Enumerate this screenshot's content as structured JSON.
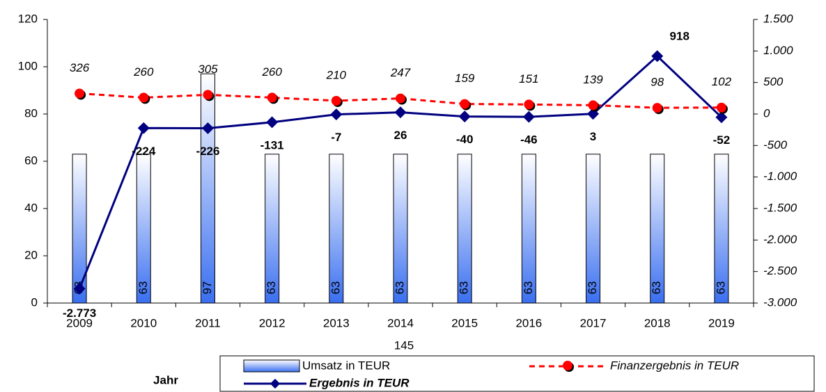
{
  "chart_data": {
    "type": "bar-line",
    "categories": [
      "2009",
      "2010",
      "2011",
      "2012",
      "2013",
      "2014",
      "2015",
      "2016",
      "2017",
      "2018",
      "2019"
    ],
    "series": [
      {
        "name": "Umsatz in TEUR",
        "type": "bar",
        "color": "#3a6ff0",
        "values": [
          63,
          63,
          97,
          63,
          63,
          63,
          63,
          63,
          63,
          63,
          63
        ]
      },
      {
        "name": "Ergebnis in TEUR",
        "type": "line",
        "axis": "y2",
        "color": "#000080",
        "values": [
          -2773,
          -224,
          -226,
          -131,
          -7,
          26,
          -40,
          -46,
          3,
          918,
          -52
        ],
        "value_labels": [
          "-2.773",
          "-224",
          "-226",
          "-131",
          "-7",
          "26",
          "-40",
          "-46",
          "3",
          "918",
          "-52"
        ]
      },
      {
        "name": "Finanzergebnis in TEUR",
        "type": "line",
        "axis": "y2",
        "color": "#ff0000",
        "dashed": true,
        "values": [
          326,
          260,
          305,
          260,
          210,
          247,
          159,
          151,
          139,
          98,
          102
        ]
      }
    ],
    "xlabel": "Jahr",
    "annotation": "145",
    "ylim": [
      0,
      120
    ],
    "yticks": [
      0,
      20,
      40,
      60,
      80,
      100,
      120
    ],
    "y2lim": [
      -3000,
      1500
    ],
    "y2ticks": [
      {
        "value": -3000,
        "label": "-3.000"
      },
      {
        "value": -2500,
        "label": "-2.500"
      },
      {
        "value": -2000,
        "label": "-2.000"
      },
      {
        "value": -1500,
        "label": "-1.500"
      },
      {
        "value": -1000,
        "label": "-1.000"
      },
      -500,
      0,
      500,
      {
        "value": 1000,
        "label": "1.000"
      },
      {
        "value": 1500,
        "label": "1.500"
      }
    ]
  }
}
